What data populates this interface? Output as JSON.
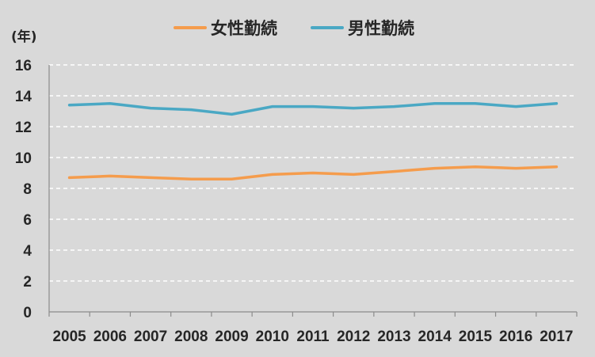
{
  "chart_data": {
    "type": "line",
    "title": "",
    "xlabel": "",
    "ylabel": "(年)",
    "ylim": [
      0,
      16
    ],
    "yticks": [
      0,
      2,
      4,
      6,
      8,
      10,
      12,
      14,
      16
    ],
    "grid": true,
    "legend_position": "top-center",
    "categories": [
      "2005",
      "2006",
      "2007",
      "2008",
      "2009",
      "2010",
      "2011",
      "2012",
      "2013",
      "2014",
      "2015",
      "2016",
      "2017"
    ],
    "series": [
      {
        "name": "女性勤続",
        "color": "#f59c4c",
        "values": [
          8.7,
          8.8,
          8.7,
          8.6,
          8.6,
          8.9,
          9.0,
          8.9,
          9.1,
          9.3,
          9.4,
          9.3,
          9.4
        ]
      },
      {
        "name": "男性勤続",
        "color": "#4aa8c4",
        "values": [
          13.4,
          13.5,
          13.2,
          13.1,
          12.8,
          13.3,
          13.3,
          13.2,
          13.3,
          13.5,
          13.5,
          13.3,
          13.5
        ]
      }
    ]
  }
}
